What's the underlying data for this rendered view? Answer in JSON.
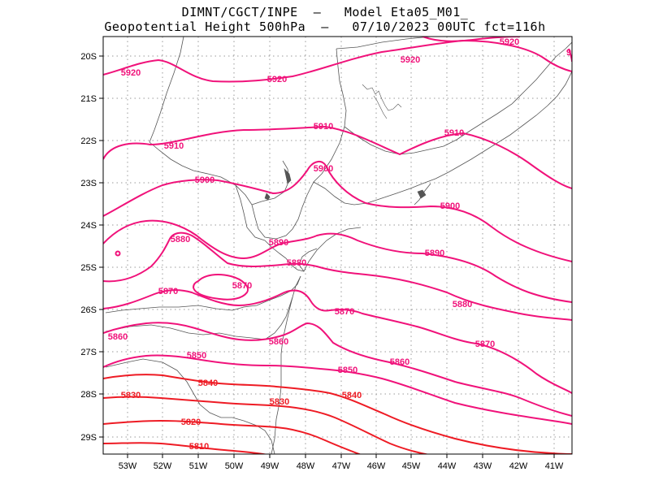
{
  "title": {
    "line1": "DIMNT/CGCT/INPE  –   Model Eta05_M01_",
    "line2": "Geopotential Height 500hPa  –   07/10/2023 00UTC fct=116h"
  },
  "axes": {
    "lon_labels": [
      "53W",
      "52W",
      "51W",
      "50W",
      "49W",
      "48W",
      "47W",
      "46W",
      "45W",
      "44W",
      "43W",
      "42W",
      "41W"
    ],
    "lat_labels": [
      "20S",
      "21S",
      "22S",
      "23S",
      "24S",
      "25S",
      "26S",
      "27S",
      "28S",
      "29S"
    ]
  },
  "colors": {
    "contour_magenta": "#f0127a",
    "contour_red": "#ee1b24",
    "coastline": "#555555",
    "grid": "#999999"
  },
  "contour_labels": [
    {
      "text": "5920",
      "color": "magenta"
    },
    {
      "text": "5920",
      "color": "magenta"
    },
    {
      "text": "5920",
      "color": "magenta"
    },
    {
      "text": "5920",
      "color": "magenta"
    },
    {
      "text": "9",
      "color": "magenta"
    },
    {
      "text": "5910",
      "color": "magenta"
    },
    {
      "text": "5910",
      "color": "magenta"
    },
    {
      "text": "5910",
      "color": "magenta"
    },
    {
      "text": "5900",
      "color": "magenta"
    },
    {
      "text": "5900",
      "color": "magenta"
    },
    {
      "text": "5900",
      "color": "magenta"
    },
    {
      "text": "5890",
      "color": "magenta"
    },
    {
      "text": "5890",
      "color": "magenta"
    },
    {
      "text": "5880",
      "color": "magenta"
    },
    {
      "text": "5880",
      "color": "magenta"
    },
    {
      "text": "5880",
      "color": "magenta"
    },
    {
      "text": "5870",
      "color": "magenta"
    },
    {
      "text": "5870",
      "color": "magenta"
    },
    {
      "text": "5870",
      "color": "magenta"
    },
    {
      "text": "5870",
      "color": "magenta"
    },
    {
      "text": "5860",
      "color": "magenta"
    },
    {
      "text": "5860",
      "color": "magenta"
    },
    {
      "text": "5860",
      "color": "magenta"
    },
    {
      "text": "5850",
      "color": "magenta"
    },
    {
      "text": "5850",
      "color": "magenta"
    },
    {
      "text": "5840",
      "color": "red"
    },
    {
      "text": "5840",
      "color": "red"
    },
    {
      "text": "5830",
      "color": "red"
    },
    {
      "text": "5830",
      "color": "red"
    },
    {
      "text": "5820",
      "color": "red"
    },
    {
      "text": "5810",
      "color": "red"
    }
  ]
}
